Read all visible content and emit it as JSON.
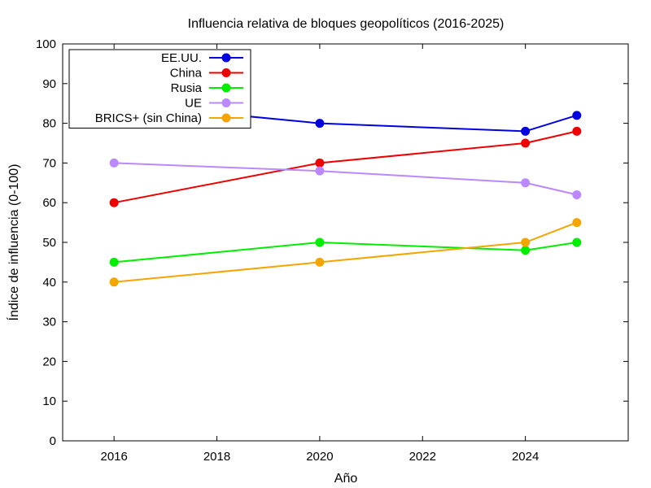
{
  "chart_data": {
    "type": "line",
    "title": "Influencia relativa de bloques geopolíticos (2016-2025)",
    "xlabel": "Año",
    "ylabel": "Índice de influencia (0-100)",
    "xlim": [
      2015,
      2026
    ],
    "ylim": [
      0,
      100
    ],
    "xticks": [
      2016,
      2018,
      2020,
      2022,
      2024
    ],
    "yticks": [
      0,
      10,
      20,
      30,
      40,
      50,
      60,
      70,
      80,
      90,
      100
    ],
    "grid": false,
    "legend_position": "top-left",
    "x": [
      2016,
      2020,
      2024,
      2025
    ],
    "series": [
      {
        "name": "EE.UU.",
        "color": "#0000e0",
        "values": [
          85,
          80,
          78,
          82
        ]
      },
      {
        "name": "China",
        "color": "#ee0000",
        "values": [
          60,
          70,
          75,
          78
        ]
      },
      {
        "name": "Rusia",
        "color": "#00ee00",
        "values": [
          45,
          50,
          48,
          50
        ]
      },
      {
        "name": "UE",
        "color": "#bb88ff",
        "values": [
          70,
          68,
          65,
          62
        ]
      },
      {
        "name": "BRICS+ (sin China)",
        "color": "#f5a500",
        "values": [
          40,
          45,
          50,
          55
        ]
      }
    ]
  }
}
